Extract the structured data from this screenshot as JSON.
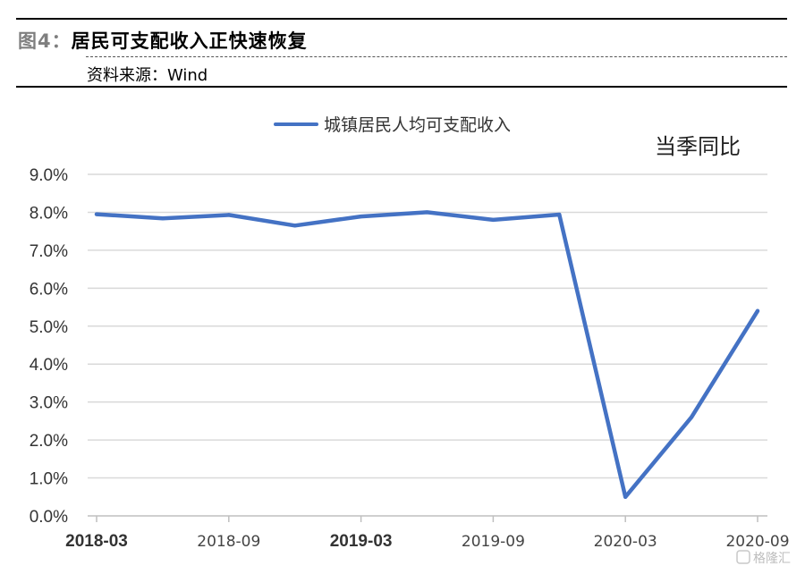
{
  "header": {
    "figure_prefix": "图4：",
    "title": "居民可支配收入正快速恢复",
    "source": "资料来源：Wind"
  },
  "watermark": {
    "text": "格隆汇"
  },
  "colors": {
    "series": "#4472c4",
    "grid": "#d9d9d9",
    "axis": "#bfbfbf"
  },
  "chart_data": {
    "type": "line",
    "title": "",
    "annotation": "当季同比",
    "xlabel": "",
    "ylabel": "",
    "legend_position": "top",
    "grid": true,
    "ylim": [
      0,
      9
    ],
    "ytick_labels": [
      "0.0%",
      "1.0%",
      "2.0%",
      "3.0%",
      "4.0%",
      "5.0%",
      "6.0%",
      "7.0%",
      "8.0%",
      "9.0%"
    ],
    "x": [
      "2018-03",
      "2018-06",
      "2018-09",
      "2018-12",
      "2019-03",
      "2019-06",
      "2019-09",
      "2019-12",
      "2020-03",
      "2020-06",
      "2020-09"
    ],
    "xtick_labels": [
      "2018-03",
      "2018-09",
      "2019-03",
      "2019-09",
      "2020-03",
      "2020-09"
    ],
    "series": [
      {
        "name": "城镇居民人均可支配收入",
        "values": [
          7.95,
          7.84,
          7.93,
          7.65,
          7.89,
          8.0,
          7.8,
          7.94,
          0.5,
          2.6,
          5.4
        ]
      }
    ]
  }
}
